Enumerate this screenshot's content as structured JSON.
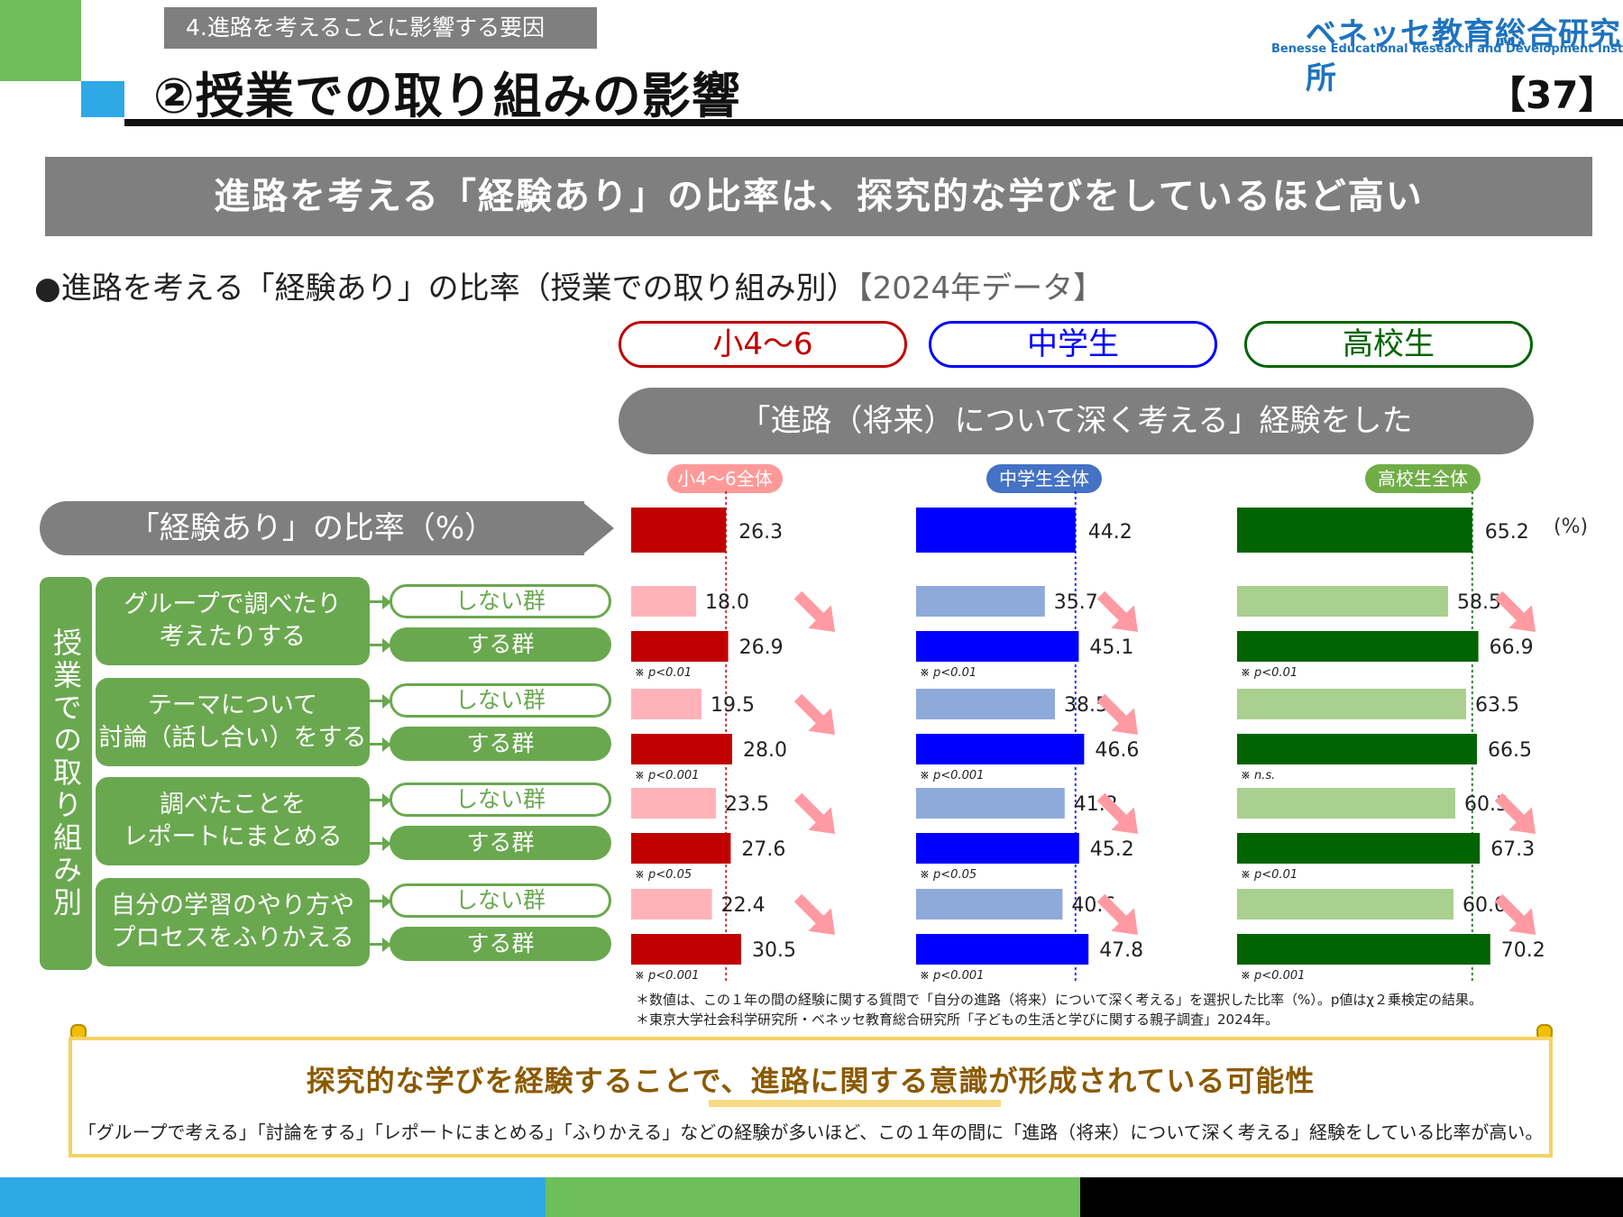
{
  "header": {
    "section_tag": "4.進路を考えることに影響する要因",
    "title": "②授業での取り組みの影響",
    "logo_jp": "ベネッセ教育総合研究所",
    "logo_en": "Benesse  Educational Research and Development Institute",
    "page_number": "【37】"
  },
  "banner": "進路を考える「経験あり」の比率は、探究的な学びをしているほど高い",
  "subtitle": "●進路を考える「経験あり」の比率（授業での取り組み別）",
  "subtitle_year": "【2024年データ】",
  "grades": [
    {
      "label": "小4～6",
      "color": "#c00000"
    },
    {
      "label": "中学生",
      "color": "#0000ff"
    },
    {
      "label": "高校生",
      "color": "#006400"
    }
  ],
  "question_pill": "「進路（将来）について深く考える」経験をした",
  "overall_tags": [
    {
      "label": "小4～6全体",
      "color": "#ff9999"
    },
    {
      "label": "中学生全体",
      "color": "#4472c4"
    },
    {
      "label": "高校生全体",
      "color": "#70ad47"
    }
  ],
  "rate_label": "「経験あり」の比率（%）",
  "unit": "(%)",
  "side_label": "授業での取り組み別",
  "group_no": "しない群",
  "group_yes": "する群",
  "items": [
    "グループで調べたり\n考えたりする",
    "テーマについて\n討論（話し合い）をする",
    "調べたことを\nレポートにまとめる",
    "自分の学習のやり方や\nプロセスをふりかえる"
  ],
  "chart_data": {
    "type": "bar",
    "orientation": "horizontal",
    "xlim": [
      0,
      100
    ],
    "colors": {
      "overall": [
        "#c00000",
        "#0000ff",
        "#006400"
      ],
      "no_group": [
        "#ffb3b8",
        "#8eaadb",
        "#a9d08e"
      ],
      "yes_group": [
        "#c00000",
        "#0000ff",
        "#006400"
      ],
      "trend_arrow": "#ff9aa2"
    },
    "series": [
      {
        "name": "小4～6",
        "overall": 26.3,
        "pairs": [
          [
            18.0,
            26.9
          ],
          [
            19.5,
            28.0
          ],
          [
            23.5,
            27.6
          ],
          [
            22.4,
            30.5
          ]
        ],
        "sig": [
          "※ p<0.01",
          "※ p<0.001",
          "※ p<0.05",
          "※ p<0.001"
        ]
      },
      {
        "name": "中学生",
        "overall": 44.2,
        "pairs": [
          [
            35.7,
            45.1
          ],
          [
            38.5,
            46.6
          ],
          [
            41.2,
            45.2
          ],
          [
            40.6,
            47.8
          ]
        ],
        "sig": [
          "※ p<0.01",
          "※ p<0.001",
          "※ p<0.05",
          "※ p<0.001"
        ]
      },
      {
        "name": "高校生",
        "overall": 65.2,
        "pairs": [
          [
            58.5,
            66.9
          ],
          [
            63.5,
            66.5
          ],
          [
            60.5,
            67.3
          ],
          [
            60.0,
            70.2
          ]
        ],
        "sig": [
          "※ p<0.01",
          "※ n.s.",
          "※ p<0.01",
          "※ p<0.001"
        ]
      }
    ],
    "arrows": [
      [
        true,
        true,
        true
      ],
      [
        true,
        true,
        false
      ],
      [
        true,
        true,
        true
      ],
      [
        true,
        true,
        true
      ]
    ]
  },
  "notes": [
    "＊数値は、この１年の間の経験に関する質問で「自分の進路（将来）について深く考える」を選択した比率（%）。p値はχ２乗検定の結果。",
    "＊東京大学社会科学研究所・ベネッセ教育総合研究所「子どもの生活と学びに関する親子調査」2024年。"
  ],
  "conclusion": {
    "headline": "探究的な学びを経験することで、進路に関する意識が形成されている可能性",
    "body": "「グループで考える」「討論をする」「レポートにまとめる」「ふりかえる」などの経験が多いほど、この１年の間に「進路（将来）について深く考える」経験をしている比率が高い。"
  },
  "bottom_bar_colors": [
    "#2fa8e6",
    "#6cbf5a",
    "#000000"
  ]
}
